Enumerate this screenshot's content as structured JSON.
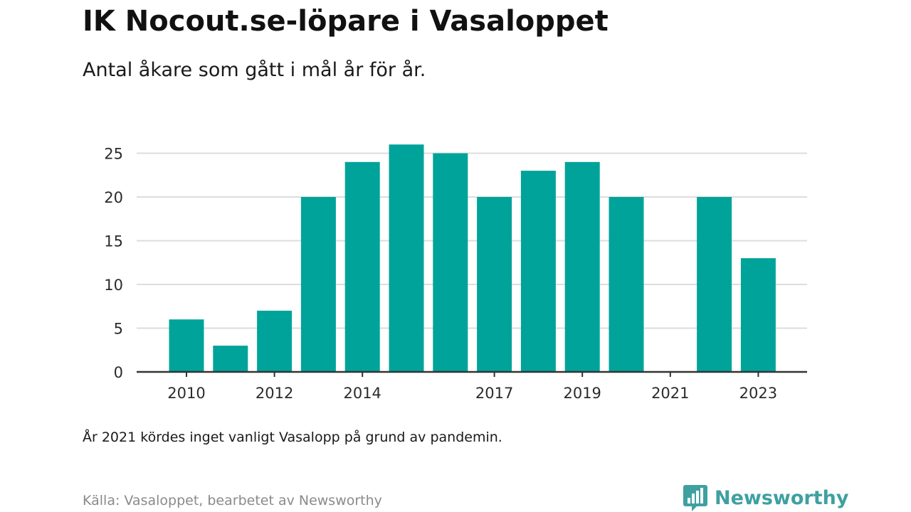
{
  "title": "IK Nocout.se-löpare i Vasaloppet",
  "subtitle": "Antal åkare som gått i mål år för år.",
  "note": "År 2021 kördes inget vanligt Vasalopp på grund av pandemin.",
  "source": "Källa: Vasaloppet, bearbetet av Newsworthy",
  "brand": {
    "name": "Newsworthy",
    "color": "#3fa0a0",
    "icon": "bar-chart-speech-bubble-icon"
  },
  "colors": {
    "bar": "#00a39a",
    "grid": "#dddddd",
    "axis": "#333333"
  },
  "chart_data": {
    "type": "bar",
    "title": "IK Nocout.se-löpare i Vasaloppet",
    "subtitle": "Antal åkare som gått i mål år för år.",
    "xlabel": "",
    "ylabel": "",
    "x": [
      2010,
      2011,
      2012,
      2013,
      2014,
      2015,
      2016,
      2017,
      2018,
      2019,
      2020,
      2021,
      2022,
      2023
    ],
    "values": [
      6,
      3,
      7,
      20,
      24,
      26,
      25,
      20,
      23,
      24,
      20,
      0,
      20,
      13
    ],
    "x_tick_labels": [
      "2010",
      "2012",
      "2014",
      "2017",
      "2019",
      "2021",
      "2023"
    ],
    "y_ticks": [
      0,
      5,
      10,
      15,
      20,
      25
    ],
    "ylim": [
      0,
      26
    ],
    "grid": true,
    "legend": "none"
  }
}
